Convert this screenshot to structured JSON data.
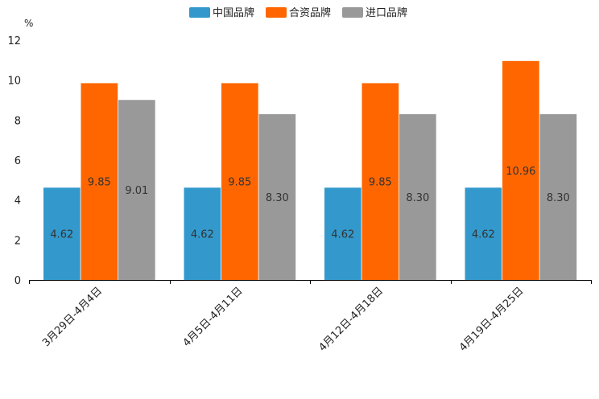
{
  "chart_data": {
    "type": "bar",
    "ylabel": "%",
    "ylim": [
      0,
      12
    ],
    "yticks": [
      "0",
      "2",
      "4",
      "6",
      "8",
      "10",
      "12"
    ],
    "legend_position": "top-center",
    "categories": [
      "3月29日-4月4日",
      "4月5日-4月11日",
      "4月12日-4月18日",
      "4月19日-4月25日"
    ],
    "series": [
      {
        "name": "中国品牌",
        "color": "#3399cc",
        "values": [
          4.62,
          4.62,
          4.62,
          4.62
        ],
        "labels": [
          "4.62",
          "4.62",
          "4.62",
          "4.62"
        ]
      },
      {
        "name": "合资品牌",
        "color": "#ff6600",
        "values": [
          9.85,
          9.85,
          9.85,
          10.96
        ],
        "labels": [
          "9.85",
          "9.85",
          "9.85",
          "10.96"
        ]
      },
      {
        "name": "进口品牌",
        "color": "#999999",
        "values": [
          9.01,
          8.3,
          8.3,
          8.3
        ],
        "labels": [
          "9.01",
          "8.30",
          "8.30",
          "8.30"
        ]
      }
    ]
  }
}
